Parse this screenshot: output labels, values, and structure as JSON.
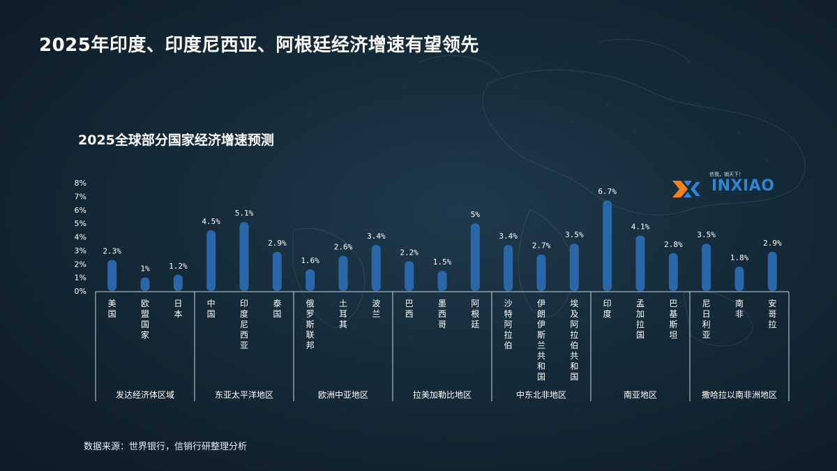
{
  "slide": {
    "title": "2025年印度、印度尼西亚、阿根廷经济增速有望领先",
    "source": "数据来源：世界银行，信销行研整理分析"
  },
  "logo": {
    "tagline": "信我，销天下！",
    "text": "INXIAO",
    "mark_color": "#f58220",
    "text_color": "#2f86d6"
  },
  "chart_data": {
    "type": "bar",
    "title": "2025全球部分国家经济增速预测",
    "ylim": [
      0,
      8
    ],
    "y_ticks": [
      "0%",
      "1%",
      "2%",
      "3%",
      "4%",
      "5%",
      "6%",
      "7%",
      "8%"
    ],
    "bar_color": "#2a67a8",
    "categories": [
      "美国",
      "欧盟国家",
      "日本",
      "中国",
      "印度尼西亚",
      "泰国",
      "俄罗斯联邦",
      "土耳其",
      "波兰",
      "巴西",
      "墨西哥",
      "阿根廷",
      "沙特阿拉伯",
      "伊朗伊斯兰共和国",
      "埃及阿拉伯共和国",
      "印度",
      "孟加拉国",
      "巴基斯坦",
      "尼日利亚",
      "南非",
      "安哥拉"
    ],
    "values": [
      2.3,
      1.0,
      1.2,
      4.5,
      5.1,
      2.9,
      1.6,
      2.6,
      3.4,
      2.2,
      1.5,
      5.0,
      3.4,
      2.7,
      3.5,
      6.7,
      4.1,
      2.8,
      3.5,
      1.8,
      2.9
    ],
    "data_labels": [
      "2.3%",
      "1%",
      "1.2%",
      "4.5%",
      "5.1%",
      "2.9%",
      "1.6%",
      "2.6%",
      "3.4%",
      "2.2%",
      "1.5%",
      "5%",
      "3.4%",
      "2.7%",
      "3.5%",
      "6.7%",
      "4.1%",
      "2.8%",
      "3.5%",
      "1.8%",
      "2.9%"
    ],
    "groups": [
      {
        "name": "发达经济体区域",
        "count": 3
      },
      {
        "name": "东亚太平洋地区",
        "count": 3
      },
      {
        "name": "欧洲中亚地区",
        "count": 3
      },
      {
        "name": "拉美加勒比地区",
        "count": 3
      },
      {
        "name": "中东北非地区",
        "count": 3
      },
      {
        "name": "南亚地区",
        "count": 3
      },
      {
        "name": "撒哈拉以南非洲地区",
        "count": 3
      }
    ]
  }
}
